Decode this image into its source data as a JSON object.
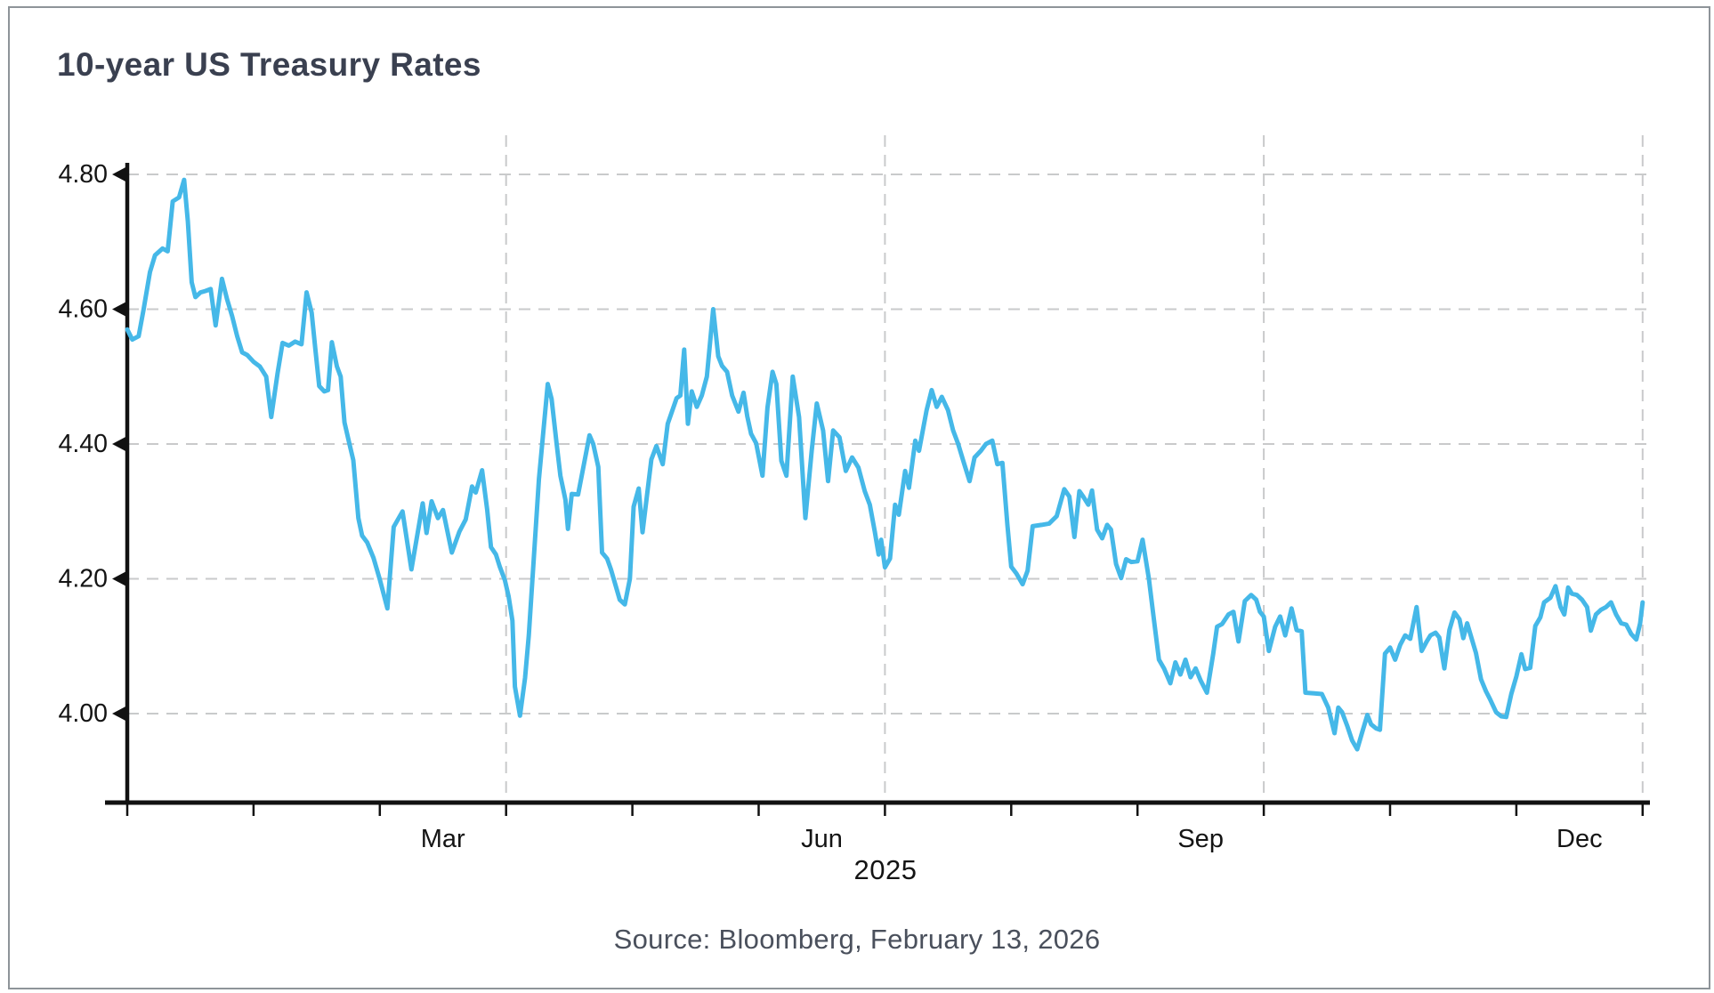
{
  "page": {
    "background": "#ffffff",
    "border_color": "#8e9499"
  },
  "header": {
    "title": "10-year US Treasury Rates",
    "title_color": "#3a4050"
  },
  "footer": {
    "year_label": "2025",
    "source": "Source: Bloomberg, February 13, 2026"
  },
  "chart_data": {
    "type": "line",
    "title": "10-year US Treasury Rates",
    "xlabel": "2025",
    "ylabel": "",
    "x_unit": "months since 2025-01-01 (0 = Jan 1, 12 = Dec 31)",
    "y_unit": "percent yield",
    "line_color": "#45b8e8",
    "axis_color": "#111111",
    "grid_color": "#c9cacb",
    "grid": "dashed",
    "legend": "none",
    "ylim": [
      3.87,
      4.82
    ],
    "y_ticks": [
      "4.80",
      "4.60",
      "4.40",
      "4.20",
      "4.00"
    ],
    "y_tick_values": [
      4.8,
      4.6,
      4.4,
      4.2,
      4.0
    ],
    "month_tick_positions": [
      0,
      1,
      2,
      3,
      4,
      5,
      6,
      7,
      8,
      9,
      10,
      11,
      12
    ],
    "gridline_months": [
      3,
      6,
      9,
      12
    ],
    "x_tick_labels": [
      "Mar",
      "Jun",
      "Sep",
      "Dec"
    ],
    "x_tick_label_positions": [
      2.5,
      5.5,
      8.5,
      11.5
    ],
    "source": "Source: Bloomberg, February 13, 2026",
    "points": [
      [
        0.0,
        4.57
      ],
      [
        0.04,
        4.555
      ],
      [
        0.09,
        4.56
      ],
      [
        0.13,
        4.6
      ],
      [
        0.18,
        4.655
      ],
      [
        0.22,
        4.68
      ],
      [
        0.28,
        4.69
      ],
      [
        0.32,
        4.686
      ],
      [
        0.36,
        4.76
      ],
      [
        0.41,
        4.766
      ],
      [
        0.45,
        4.792
      ],
      [
        0.48,
        4.73
      ],
      [
        0.51,
        4.64
      ],
      [
        0.54,
        4.618
      ],
      [
        0.58,
        4.625
      ],
      [
        0.62,
        4.627
      ],
      [
        0.66,
        4.63
      ],
      [
        0.7,
        4.576
      ],
      [
        0.75,
        4.645
      ],
      [
        0.79,
        4.615
      ],
      [
        0.83,
        4.59
      ],
      [
        0.87,
        4.56
      ],
      [
        0.91,
        4.536
      ],
      [
        0.95,
        4.532
      ],
      [
        1.0,
        4.522
      ],
      [
        1.05,
        4.515
      ],
      [
        1.1,
        4.5
      ],
      [
        1.14,
        4.44
      ],
      [
        1.19,
        4.505
      ],
      [
        1.23,
        4.55
      ],
      [
        1.28,
        4.546
      ],
      [
        1.33,
        4.552
      ],
      [
        1.38,
        4.548
      ],
      [
        1.42,
        4.625
      ],
      [
        1.46,
        4.595
      ],
      [
        1.49,
        4.54
      ],
      [
        1.52,
        4.486
      ],
      [
        1.56,
        4.478
      ],
      [
        1.59,
        4.48
      ],
      [
        1.62,
        4.551
      ],
      [
        1.66,
        4.515
      ],
      [
        1.69,
        4.5
      ],
      [
        1.72,
        4.432
      ],
      [
        1.76,
        4.4
      ],
      [
        1.79,
        4.376
      ],
      [
        1.83,
        4.29
      ],
      [
        1.86,
        4.264
      ],
      [
        1.9,
        4.254
      ],
      [
        1.95,
        4.231
      ],
      [
        2.0,
        4.199
      ],
      [
        2.06,
        4.156
      ],
      [
        2.11,
        4.277
      ],
      [
        2.18,
        4.3
      ],
      [
        2.25,
        4.214
      ],
      [
        2.34,
        4.312
      ],
      [
        2.37,
        4.268
      ],
      [
        2.41,
        4.315
      ],
      [
        2.46,
        4.29
      ],
      [
        2.5,
        4.302
      ],
      [
        2.57,
        4.239
      ],
      [
        2.63,
        4.27
      ],
      [
        2.68,
        4.288
      ],
      [
        2.73,
        4.337
      ],
      [
        2.76,
        4.328
      ],
      [
        2.81,
        4.361
      ],
      [
        2.85,
        4.303
      ],
      [
        2.88,
        4.247
      ],
      [
        2.92,
        4.236
      ],
      [
        2.95,
        4.218
      ],
      [
        2.99,
        4.198
      ],
      [
        3.02,
        4.174
      ],
      [
        3.05,
        4.138
      ],
      [
        3.07,
        4.04
      ],
      [
        3.11,
        3.997
      ],
      [
        3.15,
        4.053
      ],
      [
        3.18,
        4.116
      ],
      [
        3.22,
        4.232
      ],
      [
        3.26,
        4.348
      ],
      [
        3.33,
        4.489
      ],
      [
        3.36,
        4.467
      ],
      [
        3.4,
        4.4
      ],
      [
        3.43,
        4.353
      ],
      [
        3.47,
        4.317
      ],
      [
        3.49,
        4.274
      ],
      [
        3.52,
        4.326
      ],
      [
        3.57,
        4.325
      ],
      [
        3.66,
        4.413
      ],
      [
        3.69,
        4.4
      ],
      [
        3.73,
        4.366
      ],
      [
        3.76,
        4.239
      ],
      [
        3.8,
        4.23
      ],
      [
        3.83,
        4.214
      ],
      [
        3.9,
        4.169
      ],
      [
        3.94,
        4.162
      ],
      [
        3.98,
        4.2
      ],
      [
        4.01,
        4.307
      ],
      [
        4.05,
        4.334
      ],
      [
        4.08,
        4.269
      ],
      [
        4.15,
        4.377
      ],
      [
        4.19,
        4.397
      ],
      [
        4.24,
        4.37
      ],
      [
        4.28,
        4.43
      ],
      [
        4.35,
        4.468
      ],
      [
        4.38,
        4.472
      ],
      [
        4.41,
        4.54
      ],
      [
        4.44,
        4.43
      ],
      [
        4.47,
        4.478
      ],
      [
        4.51,
        4.455
      ],
      [
        4.55,
        4.472
      ],
      [
        4.59,
        4.5
      ],
      [
        4.64,
        4.6
      ],
      [
        4.68,
        4.53
      ],
      [
        4.71,
        4.516
      ],
      [
        4.75,
        4.507
      ],
      [
        4.79,
        4.472
      ],
      [
        4.84,
        4.448
      ],
      [
        4.88,
        4.476
      ],
      [
        4.91,
        4.441
      ],
      [
        4.94,
        4.415
      ],
      [
        4.98,
        4.401
      ],
      [
        5.03,
        4.353
      ],
      [
        5.07,
        4.454
      ],
      [
        5.11,
        4.507
      ],
      [
        5.14,
        4.489
      ],
      [
        5.18,
        4.375
      ],
      [
        5.22,
        4.353
      ],
      [
        5.27,
        4.5
      ],
      [
        5.32,
        4.44
      ],
      [
        5.37,
        4.29
      ],
      [
        5.42,
        4.39
      ],
      [
        5.46,
        4.46
      ],
      [
        5.51,
        4.42
      ],
      [
        5.55,
        4.345
      ],
      [
        5.59,
        4.42
      ],
      [
        5.64,
        4.41
      ],
      [
        5.69,
        4.36
      ],
      [
        5.74,
        4.38
      ],
      [
        5.79,
        4.365
      ],
      [
        5.84,
        4.33
      ],
      [
        5.88,
        4.31
      ],
      [
        5.92,
        4.27
      ],
      [
        5.95,
        4.236
      ],
      [
        5.97,
        4.258
      ],
      [
        6.0,
        4.217
      ],
      [
        6.04,
        4.23
      ],
      [
        6.08,
        4.31
      ],
      [
        6.11,
        4.295
      ],
      [
        6.16,
        4.36
      ],
      [
        6.19,
        4.335
      ],
      [
        6.24,
        4.405
      ],
      [
        6.27,
        4.39
      ],
      [
        6.33,
        4.45
      ],
      [
        6.37,
        4.48
      ],
      [
        6.41,
        4.455
      ],
      [
        6.45,
        4.47
      ],
      [
        6.5,
        4.45
      ],
      [
        6.54,
        4.42
      ],
      [
        6.58,
        4.4
      ],
      [
        6.62,
        4.375
      ],
      [
        6.67,
        4.345
      ],
      [
        6.71,
        4.38
      ],
      [
        6.76,
        4.39
      ],
      [
        6.8,
        4.4
      ],
      [
        6.85,
        4.405
      ],
      [
        6.89,
        4.37
      ],
      [
        6.93,
        4.372
      ],
      [
        6.97,
        4.28
      ],
      [
        7.0,
        4.218
      ],
      [
        7.04,
        4.208
      ],
      [
        7.09,
        4.192
      ],
      [
        7.13,
        4.212
      ],
      [
        7.17,
        4.278
      ],
      [
        7.24,
        4.28
      ],
      [
        7.3,
        4.282
      ],
      [
        7.36,
        4.293
      ],
      [
        7.42,
        4.333
      ],
      [
        7.46,
        4.322
      ],
      [
        7.5,
        4.262
      ],
      [
        7.54,
        4.33
      ],
      [
        7.57,
        4.322
      ],
      [
        7.61,
        4.31
      ],
      [
        7.64,
        4.331
      ],
      [
        7.68,
        4.273
      ],
      [
        7.72,
        4.26
      ],
      [
        7.76,
        4.28
      ],
      [
        7.79,
        4.273
      ],
      [
        7.83,
        4.222
      ],
      [
        7.87,
        4.201
      ],
      [
        7.91,
        4.229
      ],
      [
        7.95,
        4.225
      ],
      [
        8.0,
        4.226
      ],
      [
        8.04,
        4.258
      ],
      [
        8.09,
        4.2
      ],
      [
        8.13,
        4.14
      ],
      [
        8.17,
        4.08
      ],
      [
        8.21,
        4.067
      ],
      [
        8.26,
        4.045
      ],
      [
        8.3,
        4.076
      ],
      [
        8.34,
        4.058
      ],
      [
        8.38,
        4.08
      ],
      [
        8.42,
        4.054
      ],
      [
        8.46,
        4.067
      ],
      [
        8.5,
        4.049
      ],
      [
        8.55,
        4.031
      ],
      [
        8.6,
        4.089
      ],
      [
        8.63,
        4.129
      ],
      [
        8.67,
        4.133
      ],
      [
        8.72,
        4.147
      ],
      [
        8.76,
        4.151
      ],
      [
        8.8,
        4.107
      ],
      [
        8.85,
        4.167
      ],
      [
        8.9,
        4.176
      ],
      [
        8.94,
        4.169
      ],
      [
        8.97,
        4.151
      ],
      [
        9.0,
        4.144
      ],
      [
        9.04,
        4.093
      ],
      [
        9.09,
        4.129
      ],
      [
        9.13,
        4.144
      ],
      [
        9.17,
        4.116
      ],
      [
        9.22,
        4.156
      ],
      [
        9.26,
        4.124
      ],
      [
        9.3,
        4.122
      ],
      [
        9.33,
        4.031
      ],
      [
        9.4,
        4.03
      ],
      [
        9.46,
        4.029
      ],
      [
        9.51,
        4.009
      ],
      [
        9.56,
        3.971
      ],
      [
        9.59,
        4.009
      ],
      [
        9.62,
        4.002
      ],
      [
        9.66,
        3.982
      ],
      [
        9.7,
        3.96
      ],
      [
        9.74,
        3.947
      ],
      [
        9.78,
        3.973
      ],
      [
        9.82,
        3.998
      ],
      [
        9.85,
        3.984
      ],
      [
        9.89,
        3.978
      ],
      [
        9.92,
        3.976
      ],
      [
        9.96,
        4.089
      ],
      [
        10.0,
        4.098
      ],
      [
        10.04,
        4.08
      ],
      [
        10.08,
        4.102
      ],
      [
        10.12,
        4.116
      ],
      [
        10.16,
        4.111
      ],
      [
        10.21,
        4.158
      ],
      [
        10.25,
        4.093
      ],
      [
        10.29,
        4.107
      ],
      [
        10.32,
        4.116
      ],
      [
        10.36,
        4.12
      ],
      [
        10.39,
        4.113
      ],
      [
        10.43,
        4.067
      ],
      [
        10.47,
        4.124
      ],
      [
        10.51,
        4.15
      ],
      [
        10.55,
        4.14
      ],
      [
        10.58,
        4.112
      ],
      [
        10.61,
        4.134
      ],
      [
        10.68,
        4.09
      ],
      [
        10.72,
        4.051
      ],
      [
        10.76,
        4.033
      ],
      [
        10.79,
        4.022
      ],
      [
        10.84,
        4.002
      ],
      [
        10.88,
        3.996
      ],
      [
        10.92,
        3.995
      ],
      [
        10.96,
        4.029
      ],
      [
        11.0,
        4.055
      ],
      [
        11.04,
        4.088
      ],
      [
        11.07,
        4.066
      ],
      [
        11.11,
        4.068
      ],
      [
        11.15,
        4.13
      ],
      [
        11.19,
        4.143
      ],
      [
        11.22,
        4.165
      ],
      [
        11.27,
        4.172
      ],
      [
        11.31,
        4.189
      ],
      [
        11.35,
        4.158
      ],
      [
        11.38,
        4.147
      ],
      [
        11.41,
        4.187
      ],
      [
        11.44,
        4.178
      ],
      [
        11.48,
        4.176
      ],
      [
        11.52,
        4.169
      ],
      [
        11.56,
        4.158
      ],
      [
        11.59,
        4.123
      ],
      [
        11.63,
        4.147
      ],
      [
        11.67,
        4.154
      ],
      [
        11.71,
        4.158
      ],
      [
        11.75,
        4.165
      ],
      [
        11.79,
        4.147
      ],
      [
        11.83,
        4.134
      ],
      [
        11.87,
        4.132
      ],
      [
        11.91,
        4.118
      ],
      [
        11.95,
        4.11
      ],
      [
        11.98,
        4.134
      ],
      [
        12.0,
        4.165
      ]
    ]
  }
}
